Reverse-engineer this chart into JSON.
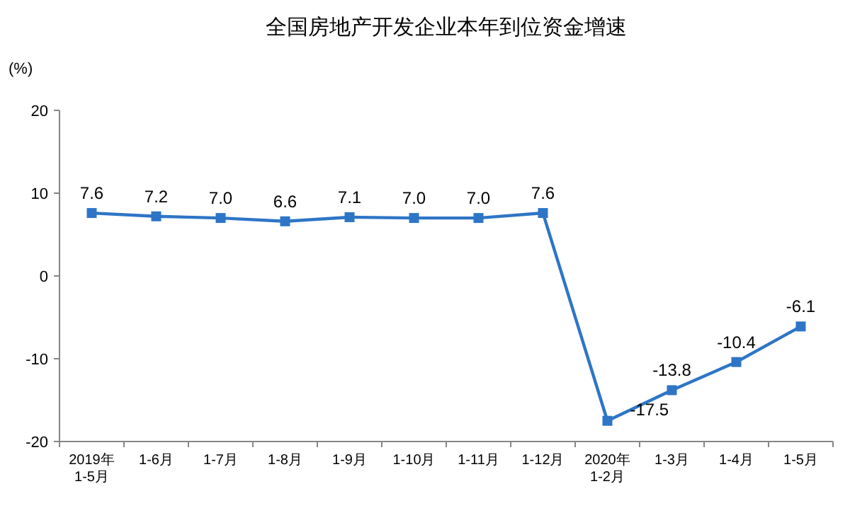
{
  "chart_data": {
    "type": "line",
    "title": "全国房地产开发企业本年到位资金增速",
    "ylabel": "(%)",
    "categories": [
      "2019年\n1-5月",
      "1-6月",
      "1-7月",
      "1-8月",
      "1-9月",
      "1-10月",
      "1-11月",
      "1-12月",
      "2020年\n1-2月",
      "1-3月",
      "1-4月",
      "1-5月"
    ],
    "series": [
      {
        "color": "#2e75c6",
        "values": [
          7.6,
          7.2,
          7.0,
          6.6,
          7.1,
          7.0,
          7.0,
          7.6,
          -17.5,
          -13.8,
          -10.4,
          -6.1
        ],
        "value_labels": [
          "7.6",
          "7.2",
          "7.0",
          "6.6",
          "7.1",
          "7.0",
          "7.0",
          "7.6",
          "-17.5",
          "-13.8",
          "-10.4",
          "-6.1"
        ]
      }
    ],
    "ylim": [
      -20,
      20
    ],
    "yticks": [
      -20,
      -10,
      0,
      10,
      20
    ],
    "marker": "square",
    "grid": false
  }
}
